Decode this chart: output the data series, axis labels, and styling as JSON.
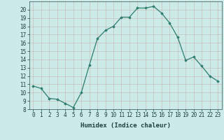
{
  "x": [
    0,
    1,
    2,
    3,
    4,
    5,
    6,
    7,
    8,
    9,
    10,
    11,
    12,
    13,
    14,
    15,
    16,
    17,
    18,
    19,
    20,
    21,
    22,
    23
  ],
  "y": [
    10.8,
    10.5,
    9.3,
    9.2,
    8.7,
    8.2,
    10.0,
    13.3,
    16.5,
    17.5,
    18.0,
    19.1,
    19.1,
    20.2,
    20.2,
    20.4,
    19.6,
    18.4,
    16.7,
    13.9,
    14.3,
    13.2,
    12.0,
    11.4
  ],
  "line_color": "#2e7d6e",
  "marker": "D",
  "marker_size": 1.8,
  "bg_color": "#cceae7",
  "grid_color_major": "#b0d4d0",
  "grid_color_minor": "#c4e0dc",
  "xlabel": "Humidex (Indice chaleur)",
  "ylim": [
    8,
    21
  ],
  "xlim": [
    -0.5,
    23.5
  ],
  "yticks": [
    8,
    9,
    10,
    11,
    12,
    13,
    14,
    15,
    16,
    17,
    18,
    19,
    20
  ],
  "xticks": [
    0,
    1,
    2,
    3,
    4,
    5,
    6,
    7,
    8,
    9,
    10,
    11,
    12,
    13,
    14,
    15,
    16,
    17,
    18,
    19,
    20,
    21,
    22,
    23
  ],
  "label_fontsize": 6.5,
  "tick_fontsize": 5.5,
  "linewidth": 0.9
}
